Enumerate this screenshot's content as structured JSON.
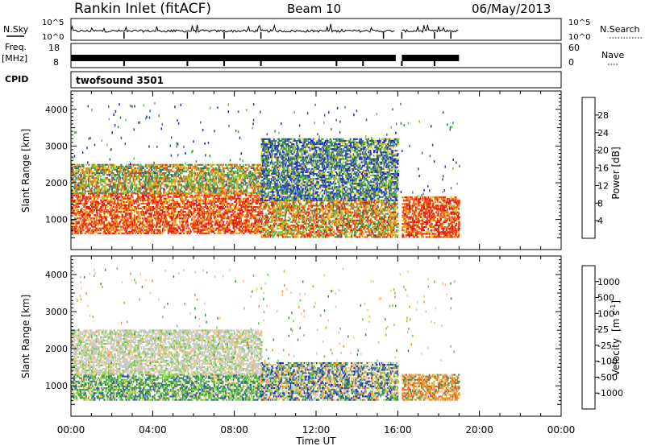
{
  "chart_data": [
    {
      "type": "line",
      "panel": "header",
      "title_left": "Rankin Inlet (fitACF)",
      "title_center": "Beam 10",
      "title_right": "06/May/2013",
      "noise_panel": {
        "left_label": "N.Sky",
        "right_label": "N.Search",
        "y_ticks_left": [
          "10^5",
          "10^0"
        ],
        "y_ticks_right": [
          "10^5",
          "10^0"
        ],
        "x_range_hours": [
          0,
          24
        ],
        "data_end_hour": 19.0,
        "gap_hours": [
          15.9,
          16.2
        ]
      },
      "freq_panel": {
        "left_label": "Freq.",
        "left_unit": "[MHz]",
        "y_ticks_left": [
          "18",
          "8"
        ],
        "right_label": "Nave",
        "y_ticks_right": [
          "60",
          "0"
        ],
        "x_range_hours": [
          0,
          24
        ],
        "data_end_hour": 19.0,
        "gap_hours": [
          15.9,
          16.2
        ]
      },
      "cpid": {
        "label": "CPID",
        "value": "twofsound 3501"
      }
    },
    {
      "type": "heatmap",
      "panel": "power",
      "ylabel": "Slant Range [km]",
      "xlabel": "",
      "yticks": [
        "1000",
        "2000",
        "3000",
        "4000"
      ],
      "ylim": [
        180,
        4500
      ],
      "xlim_hours": [
        0,
        24
      ],
      "colorbar": {
        "label": "Power [dB]",
        "ticks": [
          "4",
          "8",
          "12",
          "16",
          "20",
          "24",
          "28"
        ],
        "range": [
          0,
          32
        ],
        "colors": [
          "#1a20e6",
          "#2a3fb0",
          "#2f6f7a",
          "#3c8f4f",
          "#69c43f",
          "#e3c21b",
          "#f28a1a",
          "#ef4a12",
          "#e01616"
        ]
      },
      "echo_bands": [
        {
          "hours": [
            0.0,
            9.3
          ],
          "range_km": [
            600,
            1700
          ],
          "level": "high"
        },
        {
          "hours": [
            0.0,
            9.3
          ],
          "range_km": [
            1700,
            2500
          ],
          "level": "medium"
        },
        {
          "hours": [
            9.3,
            16.0
          ],
          "range_km": [
            500,
            1500
          ],
          "level": "medium-high"
        },
        {
          "hours": [
            9.3,
            16.0
          ],
          "range_km": [
            1500,
            3200
          ],
          "level": "low"
        },
        {
          "hours": [
            16.2,
            19.0
          ],
          "range_km": [
            500,
            1600
          ],
          "level": "high"
        }
      ]
    },
    {
      "type": "heatmap",
      "panel": "velocity",
      "ylabel": "Slant Range [km]",
      "xlabel": "Time UT",
      "xticks": [
        "00:00",
        "04:00",
        "08:00",
        "12:00",
        "16:00",
        "20:00",
        "00:00"
      ],
      "yticks": [
        "1000",
        "2000",
        "3000",
        "4000"
      ],
      "ylim": [
        180,
        4500
      ],
      "xlim_hours": [
        0,
        24
      ],
      "colorbar": {
        "label_main": "Velocity",
        "label_unit": "[m s",
        "label_exp": "-1",
        "label_close": "]",
        "ticks": [
          "1000",
          "500",
          "100",
          "25",
          "-25",
          "-100",
          "-500",
          "-1000"
        ],
        "colors": [
          "#1f2fb3",
          "#2a5aa8",
          "#3c8f4f",
          "#6fcf3f",
          "#c8c8c4",
          "#f7c27a",
          "#f29224",
          "#ef5a1a",
          "#e01616"
        ]
      },
      "echo_bands": [
        {
          "hours": [
            0.0,
            9.3
          ],
          "range_km": [
            600,
            1300
          ],
          "velocity_class": "green"
        },
        {
          "hours": [
            0.0,
            9.3
          ],
          "range_km": [
            1300,
            2500
          ],
          "velocity_class": "grey"
        },
        {
          "hours": [
            9.3,
            16.0
          ],
          "range_km": [
            600,
            1600
          ],
          "velocity_class": "mixed"
        },
        {
          "hours": [
            16.2,
            19.0
          ],
          "range_km": [
            600,
            1300
          ],
          "velocity_class": "orange"
        }
      ]
    }
  ]
}
